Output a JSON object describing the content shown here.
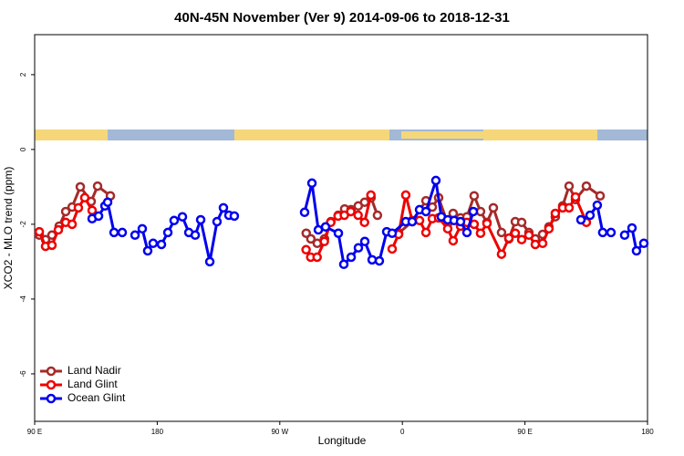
{
  "chart_data": {
    "type": "line",
    "title": "40N-45N November (Ver 9)   2014-09-06 to 2018-12-31",
    "x_label": "Longitude",
    "y_label": "XCO2 - MLO trend (ppm)",
    "xlim": [
      90,
      540
    ],
    "xticks": [
      {
        "value": 90,
        "label": "90 E"
      },
      {
        "value": 180,
        "label": "180"
      },
      {
        "value": 270,
        "label": "90 W"
      },
      {
        "value": 360,
        "label": "0"
      },
      {
        "value": 450,
        "label": "90 E"
      },
      {
        "value": 540,
        "label": "180"
      }
    ],
    "ylim": [
      -7.27,
      3.07
    ],
    "yticks": [
      2,
      0,
      -2,
      -4,
      -6
    ],
    "legend": "bottom-left",
    "series": [
      {
        "name": "Land Nadir",
        "color": "#a52a2a",
        "x": [
          93.4,
          98,
          102.7,
          108,
          112.8,
          117.5,
          123.5,
          131.5,
          136.2,
          145.6,
          null,
          289.4,
          292.8,
          297.5,
          302.8,
          307.5,
          312.9,
          317.6,
          322.3,
          327.6,
          332.3,
          337,
          341.7,
          null,
          357.2,
          367.2,
          377.3,
          382,
          386.6,
          393.3,
          397.3,
          402.7,
          407.4,
          412.7,
          417.4,
          422.1,
          426.8,
          432.8,
          438.2,
          442.9,
          447.6,
          452.9,
          457.6,
          463,
          467.6,
          472.3,
          477.7,
          482.4,
          487.1,
          495.1,
          505.2
        ],
        "values": [
          -2.29,
          -2.41,
          -2.29,
          -2.05,
          -1.66,
          -1.54,
          -1.0,
          -1.39,
          -0.98,
          -1.24,
          null,
          -2.24,
          -2.39,
          -2.51,
          -2.39,
          -1.93,
          -1.76,
          -1.59,
          -1.61,
          -1.51,
          -1.41,
          -1.29,
          -1.76,
          null,
          -2.24,
          -1.93,
          -1.37,
          -1.54,
          -1.29,
          -1.98,
          -1.71,
          -1.83,
          -1.8,
          -1.24,
          -1.66,
          -1.95,
          -1.56,
          -2.22,
          -2.39,
          -1.93,
          -1.95,
          -2.22,
          -2.39,
          -2.27,
          -2.07,
          -1.8,
          -1.51,
          -0.98,
          -1.34,
          -0.98,
          -1.24
        ]
      },
      {
        "name": "Land Glint",
        "color": "#ee0000",
        "x": [
          93.4,
          98,
          102.7,
          107.4,
          112.8,
          117.5,
          122.1,
          126.8,
          132.2,
          null,
          289.3,
          292.7,
          297.4,
          302.7,
          307.4,
          312.8,
          317.4,
          322.1,
          327.5,
          332.2,
          336.9,
          null,
          352.5,
          357.2,
          362.5,
          367.2,
          372.6,
          377.3,
          382,
          386.6,
          393.3,
          397.3,
          402.7,
          407.4,
          412.7,
          417.4,
          422.1,
          432.8,
          438.2,
          442.9,
          447.6,
          452.9,
          457.6,
          463,
          467.6,
          472.3,
          477.7,
          482.4,
          487.1,
          495.1
        ],
        "values": [
          -2.2,
          -2.59,
          -2.56,
          -2.15,
          -1.95,
          -2.0,
          -1.56,
          -1.29,
          -1.63,
          null,
          -2.68,
          -2.88,
          -2.88,
          -2.46,
          -1.95,
          -1.78,
          -1.76,
          -1.66,
          -1.76,
          -1.95,
          -1.22,
          null,
          -2.66,
          -2.27,
          -1.22,
          -1.9,
          -1.9,
          -2.22,
          -1.85,
          -1.83,
          -2.12,
          -2.44,
          -2.05,
          -1.95,
          -2.0,
          -2.24,
          -1.98,
          -2.8,
          -2.37,
          -2.24,
          -2.41,
          -2.29,
          -2.54,
          -2.51,
          -2.12,
          -1.71,
          -1.56,
          -1.56,
          -1.27,
          -1.95
        ]
      },
      {
        "name": "Ocean Glint",
        "color": "#0000ee",
        "x": [
          132.2,
          136.9,
          141.6,
          143.6,
          148.3,
          154.3,
          null,
          163.7,
          169,
          173,
          177,
          183.1,
          187.8,
          192.4,
          198.5,
          203.2,
          207.9,
          211.9,
          218.6,
          223.9,
          228.6,
          232.6,
          236.6,
          null,
          288.2,
          293.6,
          298.3,
          303.6,
          313,
          317,
          322.4,
          327.7,
          332.4,
          337.8,
          343.1,
          348.5,
          352.5,
          362.5,
          367.2,
          372.6,
          377.3,
          384.6,
          388.6,
          393.3,
          398,
          402.7,
          407.4,
          412.1,
          null,
          491.1,
          497.8,
          503.1,
          507.1,
          513.2,
          null,
          523.2,
          528.6,
          531.9,
          537.3
        ],
        "values": [
          -1.85,
          -1.78,
          -1.51,
          -1.41,
          -2.22,
          -2.22,
          null,
          -2.29,
          -2.12,
          -2.71,
          -2.51,
          -2.54,
          -2.22,
          -1.9,
          -1.8,
          -2.22,
          -2.29,
          -1.88,
          -3.0,
          -1.93,
          -1.56,
          -1.76,
          -1.78,
          null,
          -1.68,
          -0.9,
          -2.15,
          -2.07,
          -2.24,
          -3.07,
          -2.88,
          -2.63,
          -2.46,
          -2.95,
          -2.98,
          -2.2,
          -2.24,
          -1.93,
          -1.93,
          -1.61,
          -1.66,
          -0.83,
          -1.8,
          -1.88,
          -1.9,
          -1.93,
          -2.22,
          -1.66,
          null,
          -1.88,
          -1.76,
          -1.49,
          -2.22,
          -2.22,
          null,
          -2.29,
          -2.1,
          -2.71,
          -2.51
        ]
      }
    ]
  }
}
